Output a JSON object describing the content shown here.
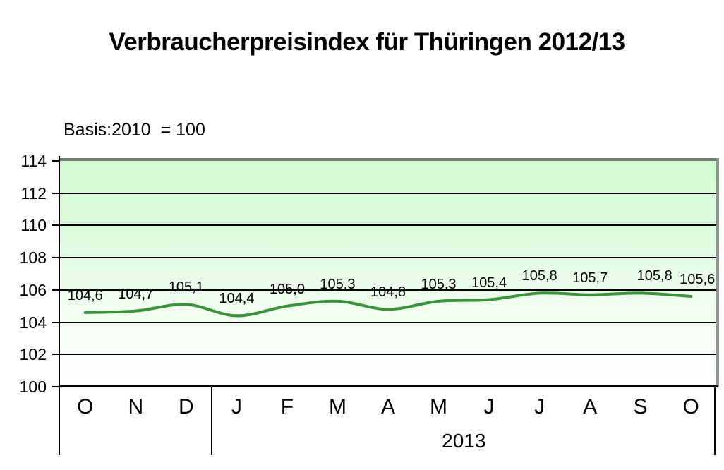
{
  "title": "Verbraucherpreisindex für Thüringen 2012/13",
  "subtitle": "Basis:2010  = 100",
  "chart_data": {
    "type": "line",
    "title": "Verbraucherpreisindex für Thüringen 2012/13",
    "subtitle": "Basis:2010  = 100",
    "categories": [
      "O",
      "N",
      "D",
      "J",
      "F",
      "M",
      "A",
      "M",
      "J",
      "J",
      "A",
      "S",
      "O"
    ],
    "values": [
      104.6,
      104.7,
      105.1,
      104.4,
      105.0,
      105.3,
      104.8,
      105.3,
      105.4,
      105.8,
      105.7,
      105.8,
      105.6
    ],
    "data_labels": [
      "104,6",
      "104,7",
      "105,1",
      "104,4",
      "105,0",
      "105,3",
      "104,8",
      "105,3",
      "105,4",
      "105,8",
      "105,7",
      "105,8",
      "105,6"
    ],
    "xlabel": "",
    "ylabel": "",
    "ylim": [
      100,
      114
    ],
    "ytick_step": 2,
    "ytick_labels": [
      "114",
      "112",
      "110",
      "108",
      "106",
      "104",
      "102",
      "100"
    ],
    "grid": true,
    "legend": "none",
    "year_groups": [
      {
        "label": "",
        "count": 3
      },
      {
        "label": "2013",
        "count": 10
      }
    ],
    "colors": {
      "line": "#3a923a",
      "gridline": "#000000",
      "plot_bg_top": "#d2fbd2",
      "plot_bg_bottom": "#ffffff",
      "shadow_border": "#7d857d",
      "text": "#000000"
    }
  }
}
